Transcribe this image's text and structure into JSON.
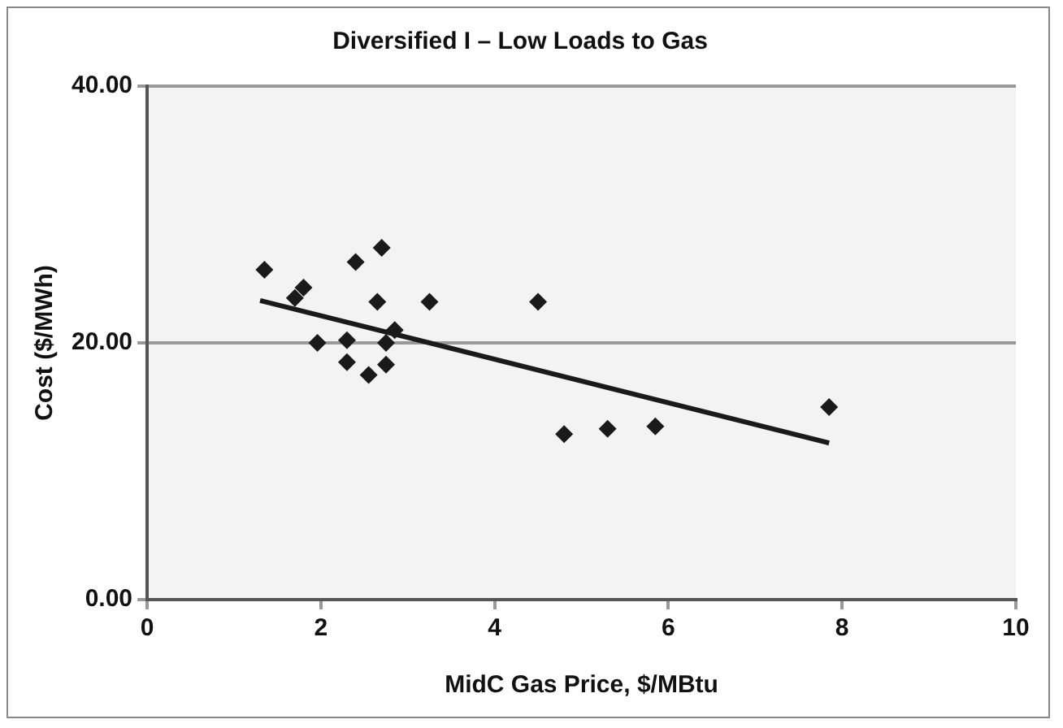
{
  "chart_data": {
    "type": "scatter",
    "title": "Diversified I – Low Loads to Gas",
    "xlabel": "MidC Gas Price, $/MBtu",
    "ylabel": "Cost ($/MWh)",
    "xlim": [
      0,
      10
    ],
    "xticks": [
      0,
      2,
      4,
      6,
      8,
      10
    ],
    "ylim": [
      0,
      40
    ],
    "yticks": [
      {
        "value": 0,
        "label": "0.00"
      },
      {
        "value": 20,
        "label": "20.00"
      },
      {
        "value": 40,
        "label": "40.00"
      }
    ],
    "grid": "y",
    "legend": false,
    "marker": "diamond",
    "series": [
      {
        "type": "scatter",
        "color": "#1a1a1a",
        "x": [
          1.35,
          1.7,
          1.8,
          2.4,
          2.7,
          2.65,
          3.25,
          4.5,
          1.96,
          2.3,
          2.3,
          2.55,
          2.75,
          2.75,
          2.85,
          4.8,
          5.3,
          5.85,
          7.85
        ],
        "values": [
          25.7,
          23.5,
          24.3,
          26.3,
          27.4,
          23.2,
          23.2,
          23.2,
          20.0,
          20.2,
          18.5,
          17.5,
          18.3,
          20.0,
          21.0,
          12.9,
          13.3,
          13.5,
          15.0
        ]
      },
      {
        "type": "line",
        "color": "#1a1a1a",
        "marker": "none",
        "x": [
          1.3,
          7.85
        ],
        "values": [
          23.3,
          12.2
        ]
      }
    ]
  }
}
